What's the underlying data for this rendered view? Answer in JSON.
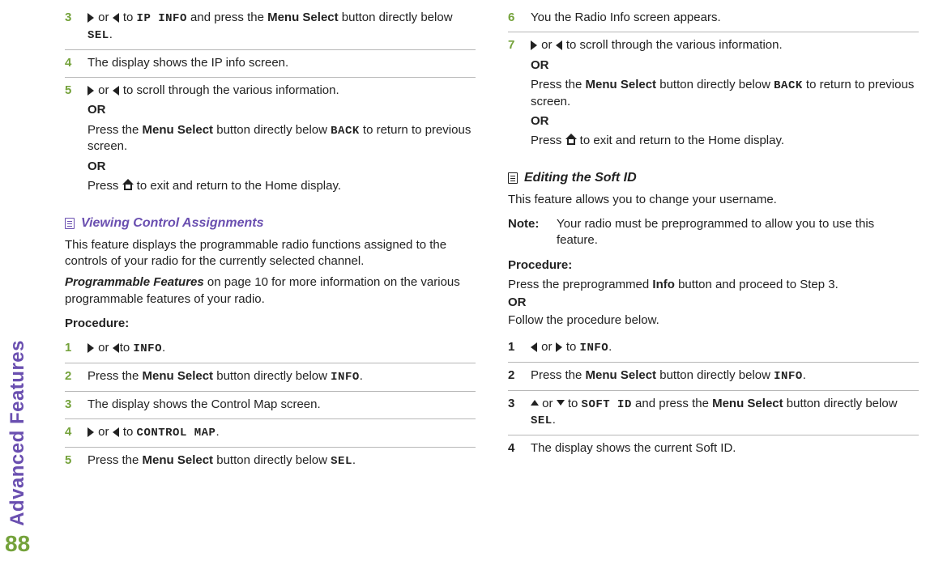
{
  "sidebar": {
    "label": "Advanced Features",
    "label_color": "#6a4fb0",
    "page_number": "88",
    "page_number_color": "#74a23b"
  },
  "colors": {
    "purple": "#6a4fb0",
    "green": "#74a23b",
    "rule": "#b7b7b7",
    "text": "#222222"
  },
  "left": {
    "steps_top": [
      {
        "num": "3",
        "num_color": "#74a23b",
        "parts": [
          {
            "t": "arrow_r"
          },
          {
            "t": "text",
            "v": " or "
          },
          {
            "t": "arrow_l"
          },
          {
            "t": "text",
            "v": " to "
          },
          {
            "t": "mono",
            "v": "IP INFO"
          },
          {
            "t": "text",
            "v": " and press the "
          },
          {
            "t": "bold",
            "v": "Menu Select"
          },
          {
            "t": "text",
            "v": " button directly below "
          },
          {
            "t": "mono",
            "v": "SEL"
          },
          {
            "t": "text",
            "v": "."
          }
        ]
      },
      {
        "num": "4",
        "num_color": "#74a23b",
        "parts": [
          {
            "t": "text",
            "v": "The display shows the IP info screen."
          }
        ]
      },
      {
        "num": "5",
        "num_color": "#74a23b",
        "parts": [
          {
            "t": "arrow_r"
          },
          {
            "t": "text",
            "v": " or "
          },
          {
            "t": "arrow_l"
          },
          {
            "t": "text",
            "v": " to scroll through the various information."
          }
        ],
        "subs": [
          [
            {
              "t": "bold",
              "v": "OR"
            }
          ],
          [
            {
              "t": "text",
              "v": "Press the "
            },
            {
              "t": "bold",
              "v": "Menu Select"
            },
            {
              "t": "text",
              "v": " button directly below "
            },
            {
              "t": "mono",
              "v": "BACK"
            },
            {
              "t": "text",
              "v": " to return to previous screen."
            }
          ],
          [
            {
              "t": "bold",
              "v": "OR"
            }
          ],
          [
            {
              "t": "text",
              "v": "Press "
            },
            {
              "t": "home"
            },
            {
              "t": "text",
              "v": " to exit and return to the Home display."
            }
          ]
        ]
      }
    ],
    "section_title": "Viewing Control Assignments",
    "section_color": "purple",
    "section_body": [
      "This feature displays the programmable radio functions assigned to the controls of your radio for the currently selected channel.",
      " Programmable Features on page 10 for more information on the various programmable features of your radio."
    ],
    "section_body_emph": {
      "1": {
        "lead_italic": "Programmable Features"
      }
    },
    "procedure_label": "Procedure:",
    "steps_bottom": [
      {
        "num": "1",
        "num_color": "#74a23b",
        "parts": [
          {
            "t": "arrow_r"
          },
          {
            "t": "text",
            "v": " or "
          },
          {
            "t": "arrow_l"
          },
          {
            "t": "text",
            "v": "to "
          },
          {
            "t": "mono",
            "v": "INFO"
          },
          {
            "t": "text",
            "v": "."
          }
        ]
      },
      {
        "num": "2",
        "num_color": "#74a23b",
        "parts": [
          {
            "t": "text",
            "v": "Press the "
          },
          {
            "t": "bold",
            "v": "Menu Select"
          },
          {
            "t": "text",
            "v": " button directly below "
          },
          {
            "t": "mono",
            "v": "INFO"
          },
          {
            "t": "text",
            "v": "."
          }
        ]
      },
      {
        "num": "3",
        "num_color": "#74a23b",
        "parts": [
          {
            "t": "text",
            "v": "The display shows the Control Map screen."
          }
        ]
      },
      {
        "num": "4",
        "num_color": "#74a23b",
        "parts": [
          {
            "t": "arrow_r"
          },
          {
            "t": "text",
            "v": " or "
          },
          {
            "t": "arrow_l"
          },
          {
            "t": "text",
            "v": " to "
          },
          {
            "t": "mono",
            "v": "CONTROL MAP"
          },
          {
            "t": "text",
            "v": "."
          }
        ]
      },
      {
        "num": "5",
        "num_color": "#74a23b",
        "parts": [
          {
            "t": "text",
            "v": "Press the "
          },
          {
            "t": "bold",
            "v": "Menu Select"
          },
          {
            "t": "text",
            "v": " button directly below "
          },
          {
            "t": "mono",
            "v": "SEL"
          },
          {
            "t": "text",
            "v": "."
          }
        ]
      }
    ]
  },
  "right": {
    "steps_top": [
      {
        "num": "6",
        "num_color": "#74a23b",
        "parts": [
          {
            "t": "text",
            "v": "You the Radio Info screen appears."
          }
        ]
      },
      {
        "num": "7",
        "num_color": "#74a23b",
        "parts": [
          {
            "t": "arrow_r"
          },
          {
            "t": "text",
            "v": " or "
          },
          {
            "t": "arrow_l"
          },
          {
            "t": "text",
            "v": " to scroll through the various information."
          }
        ],
        "subs": [
          [
            {
              "t": "bold",
              "v": "OR"
            }
          ],
          [
            {
              "t": "text",
              "v": "Press the "
            },
            {
              "t": "bold",
              "v": "Menu Select"
            },
            {
              "t": "text",
              "v": " button directly below "
            },
            {
              "t": "mono",
              "v": "BACK"
            },
            {
              "t": "text",
              "v": " to return to previous screen."
            }
          ],
          [
            {
              "t": "bold",
              "v": "OR"
            }
          ],
          [
            {
              "t": "text",
              "v": "Press "
            },
            {
              "t": "home"
            },
            {
              "t": "text",
              "v": " to exit and return to the Home display."
            }
          ]
        ]
      }
    ],
    "section_title": "Editing the Soft ID",
    "section_color": "black",
    "section_body": [
      "This feature allows you to change your username."
    ],
    "note": {
      "label": "Note:",
      "text": "Your radio must be preprogrammed to allow you to use this feature."
    },
    "procedure_label": "Procedure:",
    "procedure_intro": [
      [
        {
          "t": "text",
          "v": "Press the preprogrammed "
        },
        {
          "t": "bold",
          "v": "Info"
        },
        {
          "t": "text",
          "v": " button and proceed to Step 3."
        }
      ],
      [
        {
          "t": "bold",
          "v": "OR"
        }
      ],
      [
        {
          "t": "text",
          "v": "Follow the procedure below."
        }
      ]
    ],
    "steps_bottom": [
      {
        "num": "1",
        "num_color": "#222222",
        "parts": [
          {
            "t": "arrow_l"
          },
          {
            "t": "text",
            "v": " or "
          },
          {
            "t": "arrow_r"
          },
          {
            "t": "text",
            "v": " to "
          },
          {
            "t": "mono",
            "v": "INFO"
          },
          {
            "t": "text",
            "v": "."
          }
        ]
      },
      {
        "num": "2",
        "num_color": "#222222",
        "parts": [
          {
            "t": "text",
            "v": "Press the "
          },
          {
            "t": "bold",
            "v": "Menu Select"
          },
          {
            "t": "text",
            "v": " button directly below "
          },
          {
            "t": "mono",
            "v": "INFO"
          },
          {
            "t": "text",
            "v": "."
          }
        ]
      },
      {
        "num": "3",
        "num_color": "#222222",
        "parts": [
          {
            "t": "ud_up"
          },
          {
            "t": "text",
            "v": " or "
          },
          {
            "t": "ud_down"
          },
          {
            "t": "text",
            "v": " to "
          },
          {
            "t": "mono",
            "v": "SOFT ID"
          },
          {
            "t": "text",
            "v": " and press the "
          },
          {
            "t": "bold",
            "v": "Menu Select"
          },
          {
            "t": "text",
            "v": " button directly below "
          },
          {
            "t": "mono",
            "v": "SEL"
          },
          {
            "t": "text",
            "v": "."
          }
        ]
      },
      {
        "num": "4",
        "num_color": "#222222",
        "parts": [
          {
            "t": "text",
            "v": "The display shows the current Soft ID."
          }
        ]
      }
    ]
  }
}
